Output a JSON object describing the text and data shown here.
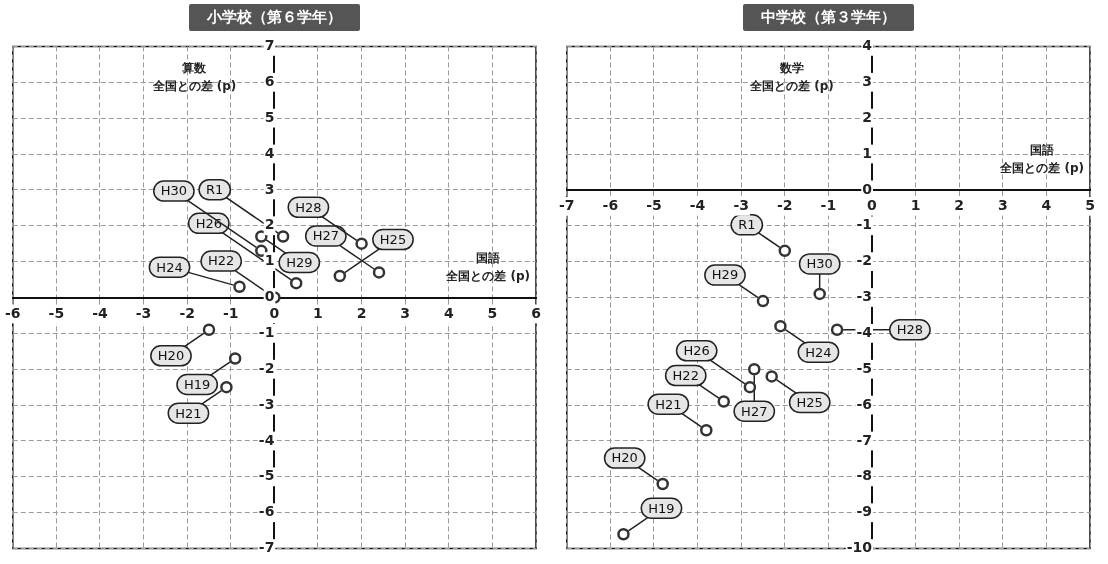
{
  "chart_data": [
    {
      "type": "scatter",
      "title": "小学校（第６学年）",
      "xlabel": "国語全国との差 (p)",
      "ylabel": "算数全国との差 (p)",
      "x": [
        -0.9,
        -1.5,
        -1.1,
        0,
        -0.8,
        1.5,
        0.5,
        2.4,
        2.0,
        -0.3,
        -0.3,
        0.2
      ],
      "values": [
        -1.7,
        -0.9,
        -2.5,
        0,
        0.3,
        0.6,
        0.4,
        0.7,
        1.5,
        1.7,
        1.3,
        1.7
      ],
      "color": "#333333",
      "marker": "circle",
      "grid": true,
      "xlim": [
        -6,
        6
      ],
      "ylim": [
        -7,
        7
      ],
      "xticks": [
        -6,
        -5,
        -4,
        -3,
        -2,
        -1,
        0,
        1,
        2,
        3,
        4,
        5,
        6
      ],
      "yticks": [
        -7,
        -6,
        -5,
        -4,
        -3,
        -2,
        -1,
        0,
        1,
        2,
        3,
        4,
        5,
        6,
        7
      ],
      "annotations": [
        {
          "text": "H19",
          "x": -0.9,
          "y": -1.7
        },
        {
          "text": "H20",
          "x": -1.5,
          "y": -0.9
        },
        {
          "text": "H21",
          "x": -1.1,
          "y": -2.5
        },
        {
          "text": "H22",
          "x": 0,
          "y": 0
        },
        {
          "text": "H24",
          "x": -0.8,
          "y": 0.3
        },
        {
          "text": "H25",
          "x": 1.5,
          "y": 0.6
        },
        {
          "text": "H26",
          "x": 0.5,
          "y": 0.4
        },
        {
          "text": "H27",
          "x": 2.4,
          "y": 0.7
        },
        {
          "text": "H28",
          "x": 2.0,
          "y": 1.5
        },
        {
          "text": "H29",
          "x": -0.3,
          "y": 1.7
        },
        {
          "text": "H30",
          "x": -0.3,
          "y": 1.3
        },
        {
          "text": "R1",
          "x": 0.2,
          "y": 1.7
        }
      ]
    },
    {
      "type": "scatter",
      "title": "中学校（第３学年）",
      "xlabel": "国語全国との差 (p)",
      "ylabel": "数学全国との差 (p)",
      "x": [
        -5.7,
        -4.8,
        -3.8,
        -3.4,
        -2.1,
        -2.3,
        -2.8,
        -2.7,
        -0.8,
        -2.5,
        -1.2,
        -2.0
      ],
      "values": [
        -9.6,
        -8.2,
        -6.7,
        -5.9,
        -3.8,
        -5.2,
        -5.5,
        -5.0,
        -3.9,
        -3.1,
        -2.9,
        -1.7
      ],
      "color": "#333333",
      "marker": "circle",
      "grid": true,
      "xlim": [
        -7,
        5
      ],
      "ylim": [
        -10,
        4
      ],
      "xticks": [
        -7,
        -6,
        -5,
        -4,
        -3,
        -2,
        -1,
        0,
        1,
        2,
        3,
        4,
        5
      ],
      "yticks": [
        -10,
        -9,
        -8,
        -7,
        -6,
        -5,
        -4,
        -3,
        -2,
        -1,
        0,
        1,
        2,
        3,
        4
      ],
      "annotations": [
        {
          "text": "H19",
          "x": -5.7,
          "y": -9.6
        },
        {
          "text": "H20",
          "x": -4.8,
          "y": -8.2
        },
        {
          "text": "H21",
          "x": -3.8,
          "y": -6.7
        },
        {
          "text": "H22",
          "x": -3.4,
          "y": -5.9
        },
        {
          "text": "H24",
          "x": -2.1,
          "y": -3.8
        },
        {
          "text": "H25",
          "x": -2.3,
          "y": -5.2
        },
        {
          "text": "H26",
          "x": -2.8,
          "y": -5.5
        },
        {
          "text": "H27",
          "x": -2.7,
          "y": -5.0
        },
        {
          "text": "H28",
          "x": -0.8,
          "y": -3.9
        },
        {
          "text": "H29",
          "x": -2.5,
          "y": -3.1
        },
        {
          "text": "H30",
          "x": -1.2,
          "y": -2.9
        },
        {
          "text": "R1",
          "x": -2.0,
          "y": -1.7
        }
      ]
    }
  ]
}
